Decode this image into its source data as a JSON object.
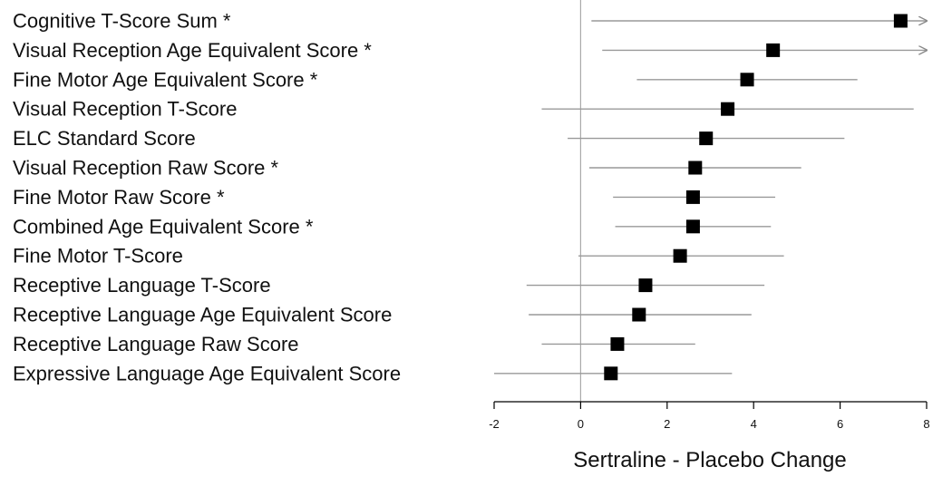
{
  "chart_data": {
    "type": "forest",
    "xlabel": "Sertraline - Placebo Change",
    "xlim": [
      -2,
      8
    ],
    "xticks": [
      -2,
      0,
      2,
      4,
      6,
      8
    ],
    "xtick_labels": [
      "-2",
      "0",
      "2",
      "4",
      "6",
      "8"
    ],
    "reference_line": 0,
    "colors": {
      "marker": "#000000",
      "interval": "#999999",
      "axis": "#000000",
      "reference": "#aaaaaa"
    },
    "rows": [
      {
        "label": "Cognitive T-Score Sum *",
        "estimate": 7.4,
        "lower": 0.25,
        "upper": 8.0,
        "arrow_right": true
      },
      {
        "label": "Visual Reception Age Equivalent Score *",
        "estimate": 4.45,
        "lower": 0.5,
        "upper": 8.0,
        "arrow_right": true
      },
      {
        "label": "Fine Motor Age Equivalent Score *",
        "estimate": 3.85,
        "lower": 1.3,
        "upper": 6.4,
        "arrow_right": false
      },
      {
        "label": "Visual Reception T-Score",
        "estimate": 3.4,
        "lower": -0.9,
        "upper": 7.7,
        "arrow_right": false
      },
      {
        "label": "ELC Standard Score",
        "estimate": 2.9,
        "lower": -0.3,
        "upper": 6.1,
        "arrow_right": false
      },
      {
        "label": "Visual Reception Raw Score *",
        "estimate": 2.65,
        "lower": 0.2,
        "upper": 5.1,
        "arrow_right": false
      },
      {
        "label": "Fine Motor Raw Score *",
        "estimate": 2.6,
        "lower": 0.75,
        "upper": 4.5,
        "arrow_right": false
      },
      {
        "label": "Combined Age Equivalent Score *",
        "estimate": 2.6,
        "lower": 0.8,
        "upper": 4.4,
        "arrow_right": false
      },
      {
        "label": "Fine Motor T-Score",
        "estimate": 2.3,
        "lower": -0.05,
        "upper": 4.7,
        "arrow_right": false
      },
      {
        "label": "Receptive Language T-Score",
        "estimate": 1.5,
        "lower": -1.25,
        "upper": 4.25,
        "arrow_right": false
      },
      {
        "label": "Receptive Language Age Equivalent Score",
        "estimate": 1.35,
        "lower": -1.2,
        "upper": 3.95,
        "arrow_right": false
      },
      {
        "label": "Receptive Language Raw Score",
        "estimate": 0.85,
        "lower": -0.9,
        "upper": 2.65,
        "arrow_right": false
      },
      {
        "label": "Expressive Language Age Equivalent Score",
        "estimate": 0.7,
        "lower": -2.0,
        "upper": 3.5,
        "arrow_right": false
      }
    ]
  }
}
